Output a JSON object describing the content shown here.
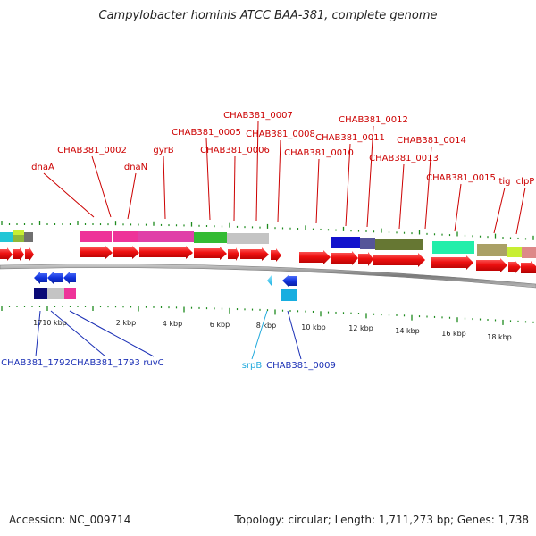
{
  "title": "Campylobacter hominis ATCC BAA-381, complete genome",
  "accession": "Accession: NC_009714",
  "summary": "Topology: circular; Length: 1,711,273 bp; Genes: 1,738",
  "colors": {
    "forward_label": "#cc0000",
    "reverse_label": "#1a2fb5",
    "rna_label": "#22aadd",
    "arrow": "#ee1111",
    "tick": "#1d8a1d",
    "backbone": "#888888"
  },
  "scale_labels": [
    "1710 kbp",
    "2 kbp",
    "4 kbp",
    "6 kbp",
    "8 kbp",
    "10 kbp",
    "12 kbp",
    "14 kbp",
    "16 kbp",
    "18 kbp"
  ],
  "top_genes": [
    {
      "label": "dnaA",
      "strand": "+"
    },
    {
      "label": "CHAB381_0002",
      "strand": "+"
    },
    {
      "label": "dnaN",
      "strand": "+"
    },
    {
      "label": "gyrB",
      "strand": "+"
    },
    {
      "label": "CHAB381_0005",
      "strand": "+"
    },
    {
      "label": "CHAB381_0006",
      "strand": "+"
    },
    {
      "label": "CHAB381_0007",
      "strand": "+"
    },
    {
      "label": "CHAB381_0008",
      "strand": "+"
    },
    {
      "label": "CHAB381_0010",
      "strand": "+"
    },
    {
      "label": "CHAB381_0011",
      "strand": "+"
    },
    {
      "label": "CHAB381_0012",
      "strand": "+"
    },
    {
      "label": "CHAB381_0013",
      "strand": "+"
    },
    {
      "label": "CHAB381_0014",
      "strand": "+"
    },
    {
      "label": "CHAB381_0015",
      "strand": "+"
    },
    {
      "label": "tig",
      "strand": "+"
    },
    {
      "label": "clpP",
      "strand": "+"
    }
  ],
  "bottom_genes": [
    {
      "label": "CHAB381_1792",
      "strand": "-"
    },
    {
      "label": "CHAB381_1793",
      "strand": "-"
    },
    {
      "label": "ruvC",
      "strand": "-"
    },
    {
      "label": "srpB",
      "strand": "-"
    },
    {
      "label": "CHAB381_0009",
      "strand": "-"
    }
  ]
}
